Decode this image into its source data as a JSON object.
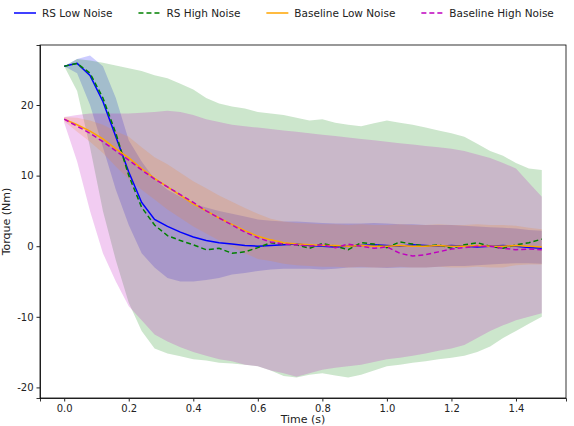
{
  "chart_data": {
    "type": "line",
    "x_label": "Time (s)",
    "y_label": "Torque (Nm)",
    "legend": "top",
    "x": [
      0,
      0.04,
      0.08,
      0.12,
      0.16,
      0.2,
      0.24,
      0.28,
      0.32,
      0.36,
      0.4,
      0.44,
      0.48,
      0.52,
      0.56,
      0.6,
      0.64,
      0.68,
      0.72,
      0.76,
      0.8,
      0.84,
      0.88,
      0.92,
      0.96,
      1.0,
      1.04,
      1.08,
      1.12,
      1.16,
      1.2,
      1.24,
      1.28,
      1.32,
      1.36,
      1.4,
      1.44,
      1.48
    ],
    "xlim": [
      -0.075,
      1.555
    ],
    "xticks": [
      {
        "value": 0,
        "label": "0.0"
      },
      {
        "value": 0.2,
        "label": "0.2"
      },
      {
        "value": 0.4,
        "label": "0.4"
      },
      {
        "value": 0.6,
        "label": "0.6"
      },
      {
        "value": 0.8,
        "label": "0.8"
      },
      {
        "value": 1.0,
        "label": "1.0"
      },
      {
        "value": 1.2,
        "label": "1.2"
      },
      {
        "value": 1.4,
        "label": "1.4"
      }
    ],
    "ylim": [
      -21.5,
      28.5
    ],
    "yticks": [
      -20,
      -10,
      0,
      10,
      20
    ],
    "series": [
      {
        "name": "RS Low Noise",
        "color": "#0000ff",
        "line_style": "solid",
        "values": [
          25.5,
          25.9,
          24.2,
          20.5,
          15.5,
          10.5,
          6.2,
          3.8,
          2.8,
          2.0,
          1.3,
          0.8,
          0.5,
          0.3,
          0.1,
          0.0,
          0.1,
          0.2,
          0.3,
          0.1,
          0.0,
          -0.1,
          0.0,
          0.1,
          0.2,
          0.1,
          0.0,
          0.2,
          0.1,
          0.0,
          0.1,
          0.0,
          -0.1,
          0.0,
          0.1,
          0.0,
          -0.2,
          -0.3
        ],
        "lower": [
          25.5,
          24.5,
          20,
          14,
          8,
          3,
          -1,
          -3,
          -4.5,
          -5,
          -5,
          -4.8,
          -4.5,
          -4,
          -3.8,
          -3.5,
          -3.3,
          -3.2,
          -3.2,
          -3.2,
          -3.3,
          -3.2,
          -3.0,
          -3.0,
          -3.0,
          -3.1,
          -3.0,
          -3.0,
          -3.0,
          -2.9,
          -2.8,
          -2.8,
          -2.7,
          -2.6,
          -2.5,
          -2.4,
          -2.4,
          -2.5
        ],
        "upper": [
          25.5,
          26.5,
          27,
          25.5,
          21,
          15,
          12,
          9.5,
          8,
          7,
          6,
          5.5,
          5,
          4.6,
          4.2,
          3.8,
          3.6,
          3.5,
          3.5,
          3.4,
          3.3,
          3.2,
          3.2,
          3.2,
          3.3,
          3.2,
          3.1,
          3.1,
          3.0,
          3.0,
          3.0,
          2.9,
          2.8,
          2.7,
          2.6,
          2.5,
          2.3,
          2.2
        ]
      },
      {
        "name": "RS High Noise",
        "color": "#008000",
        "line_style": "dashed",
        "values": [
          25.5,
          25.9,
          24.5,
          21,
          16,
          10,
          5.5,
          3,
          1.5,
          0.8,
          0.2,
          -0.5,
          -0.3,
          -1.0,
          -0.8,
          -0.2,
          0.5,
          0.3,
          0.2,
          -0.3,
          0.4,
          0.0,
          -0.5,
          0.5,
          0.3,
          -0.2,
          0.6,
          0.3,
          0.0,
          0.2,
          -0.3,
          0.2,
          0.5,
          0.0,
          -0.3,
          0.2,
          0.5,
          1.0
        ],
        "lower": [
          25.5,
          22,
          14,
          5,
          -2,
          -8,
          -12,
          -14.5,
          -15.2,
          -15.6,
          -16,
          -16.2,
          -16.5,
          -16.6,
          -16.8,
          -17,
          -17.6,
          -18.4,
          -18.6,
          -18.2,
          -18.0,
          -18.3,
          -18.6,
          -18.2,
          -17.6,
          -17.0,
          -16.8,
          -16.5,
          -16.3,
          -16.0,
          -15.8,
          -15.5,
          -15.0,
          -14.2,
          -13.0,
          -12.0,
          -11.0,
          -10.0
        ],
        "upper": [
          25.5,
          26.5,
          26.3,
          26.0,
          25.6,
          25.2,
          24.8,
          24.2,
          23.8,
          23.0,
          22.2,
          21.0,
          20.2,
          19.8,
          19.5,
          19.0,
          18.8,
          18.6,
          18.2,
          17.8,
          18.0,
          17.5,
          17.2,
          17.0,
          17.4,
          17.8,
          17.5,
          17.2,
          16.8,
          16.4,
          16.0,
          15.5,
          14.5,
          13.5,
          12.8,
          11.8,
          11.0,
          10.8
        ]
      },
      {
        "name": "Baseline Low Noise",
        "color": "#ffa500",
        "line_style": "solid",
        "values": [
          18,
          17.2,
          16.3,
          15.2,
          13.8,
          12.5,
          11.0,
          9.6,
          8.4,
          7.2,
          6.0,
          5.0,
          4.0,
          3.1,
          2.2,
          1.4,
          0.9,
          0.5,
          0.3,
          0.2,
          0.1,
          0.1,
          0.0,
          0.1,
          0.0,
          0.0,
          0.1,
          0.0,
          0.0,
          0.1,
          0.0,
          0.0,
          0.1,
          0.0,
          0.0,
          0.1,
          0.0,
          -0.1
        ],
        "lower": [
          17.7,
          16.2,
          14.8,
          13.2,
          11.3,
          9.5,
          8.0,
          6.6,
          5.2,
          4.0,
          2.8,
          1.8,
          0.8,
          -0.1,
          -1.0,
          -1.8,
          -2.1,
          -2.5,
          -2.7,
          -2.8,
          -2.9,
          -2.9,
          -3.0,
          -2.9,
          -3.0,
          -3.0,
          -2.9,
          -3.0,
          -3.0,
          -2.9,
          -3.0,
          -3.0,
          -2.9,
          -3.0,
          -3.0,
          -2.7,
          -2.6,
          -2.6
        ],
        "upper": [
          18.3,
          18.2,
          17.8,
          17.2,
          16.3,
          15.5,
          14.0,
          12.6,
          11.6,
          10.4,
          9.2,
          8.2,
          7.2,
          6.3,
          5.4,
          4.6,
          3.9,
          3.5,
          3.3,
          3.2,
          3.1,
          3.1,
          3.0,
          3.1,
          3.0,
          3.0,
          3.1,
          3.0,
          3.0,
          3.1,
          3.0,
          3.0,
          3.1,
          3.0,
          3.0,
          2.9,
          2.6,
          2.4
        ]
      },
      {
        "name": "Baseline High Noise",
        "color": "#bf00bf",
        "line_style": "dashed",
        "values": [
          18,
          17.0,
          16.0,
          14.8,
          13.5,
          12.2,
          10.8,
          9.5,
          8.4,
          7.3,
          6.2,
          5.0,
          4.0,
          3.0,
          2.0,
          1.2,
          0.6,
          0.3,
          0.2,
          0.0,
          0.2,
          -0.2,
          0.3,
          0.0,
          -0.3,
          -0.1,
          -1.0,
          -1.4,
          -1.2,
          -0.8,
          -0.4,
          -0.2,
          0.0,
          0.0,
          -0.3,
          -0.5,
          -0.4,
          -0.5
        ],
        "lower": [
          17.5,
          12,
          5,
          -1,
          -5,
          -8.5,
          -10.5,
          -12.5,
          -13.5,
          -14.3,
          -15,
          -15.5,
          -16,
          -16.3,
          -16.8,
          -17,
          -17.6,
          -18,
          -18.5,
          -18,
          -17.5,
          -17.2,
          -17,
          -16.8,
          -16.4,
          -16,
          -15.8,
          -15.5,
          -15.2,
          -14.8,
          -14.5,
          -14,
          -13,
          -12,
          -11.2,
          -10.5,
          -10,
          -9.5
        ],
        "upper": [
          18.3,
          18.6,
          18.8,
          18.8,
          18.8,
          18.8,
          18.9,
          19.0,
          19.2,
          19.0,
          18.6,
          18.0,
          17.6,
          17.2,
          17.0,
          16.8,
          16.6,
          16.4,
          16.2,
          16.0,
          15.8,
          15.6,
          15.4,
          15.2,
          15.0,
          14.8,
          14.6,
          14.4,
          14.2,
          14.0,
          13.8,
          13.5,
          13.0,
          12.5,
          11.8,
          11.0,
          9.0,
          7.0
        ]
      }
    ]
  }
}
